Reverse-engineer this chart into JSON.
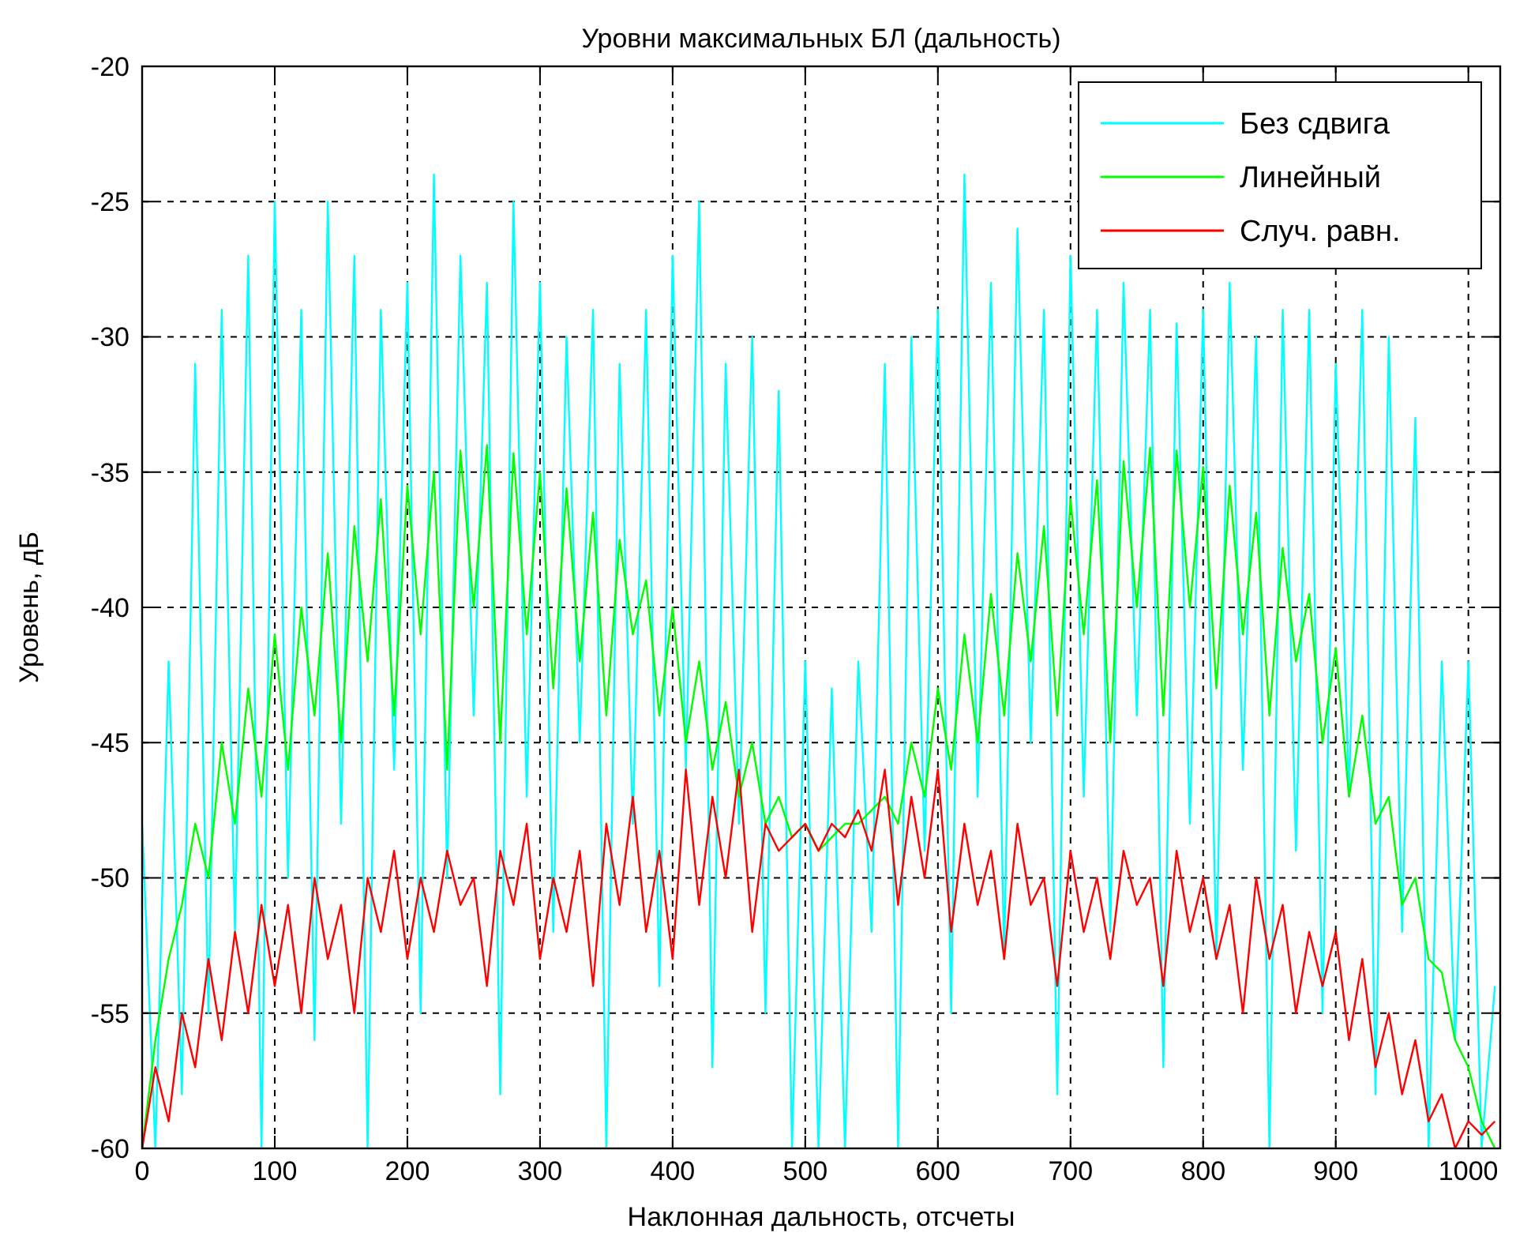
{
  "chart_data": {
    "type": "line",
    "title": "Уровни максимальных БЛ (дальность)",
    "xlabel": "Наклонная дальность, отсчеты",
    "ylabel": "Уровень, дБ",
    "x": [
      0,
      10,
      20,
      30,
      40,
      50,
      60,
      70,
      80,
      90,
      100,
      110,
      120,
      130,
      140,
      150,
      160,
      170,
      180,
      190,
      200,
      210,
      220,
      230,
      240,
      250,
      260,
      270,
      280,
      290,
      300,
      310,
      320,
      330,
      340,
      350,
      360,
      370,
      380,
      390,
      400,
      410,
      420,
      430,
      440,
      450,
      460,
      470,
      480,
      490,
      500,
      510,
      520,
      530,
      540,
      550,
      560,
      570,
      580,
      590,
      600,
      610,
      620,
      630,
      640,
      650,
      660,
      670,
      680,
      690,
      700,
      710,
      720,
      730,
      740,
      750,
      760,
      770,
      780,
      790,
      800,
      810,
      820,
      830,
      840,
      850,
      860,
      870,
      880,
      890,
      900,
      910,
      920,
      930,
      940,
      950,
      960,
      970,
      980,
      990,
      1000,
      1010,
      1020
    ],
    "xlim": [
      0,
      1024
    ],
    "xticks": [
      0,
      100,
      200,
      300,
      400,
      500,
      600,
      700,
      800,
      900,
      1000
    ],
    "ylim": [
      -60,
      -20
    ],
    "yticks": [
      -60,
      -55,
      -50,
      -45,
      -40,
      -35,
      -30,
      -25,
      -20
    ],
    "grid": true,
    "legend": "top right",
    "line_style": "solid",
    "series": [
      {
        "name": "Без сдвига",
        "color": "#00ffff",
        "values": [
          -48,
          -60,
          -42,
          -58,
          -31,
          -55,
          -29,
          -52,
          -27,
          -60,
          -25,
          -50,
          -29,
          -56,
          -25,
          -48,
          -27,
          -60,
          -29,
          -46,
          -28,
          -55,
          -24,
          -50,
          -27,
          -44,
          -28,
          -58,
          -25,
          -47,
          -28,
          -52,
          -30,
          -45,
          -29,
          -60,
          -31,
          -48,
          -29,
          -54,
          -27,
          -46,
          -25,
          -57,
          -31,
          -48,
          -30,
          -55,
          -32,
          -60,
          -42,
          -60,
          -43,
          -60,
          -42,
          -52,
          -31,
          -60,
          -30,
          -49,
          -29,
          -55,
          -24,
          -47,
          -28,
          -53,
          -26,
          -45,
          -29,
          -58,
          -27,
          -47,
          -29,
          -52,
          -28,
          -44,
          -29,
          -57,
          -29.5,
          -48,
          -29,
          -53,
          -28,
          -46,
          -30,
          -60,
          -29,
          -49,
          -29,
          -55,
          -31,
          -47,
          -29,
          -58,
          -30,
          -52,
          -33,
          -60,
          -42,
          -56,
          -42,
          -60,
          -54
        ]
      },
      {
        "name": "Линейный",
        "color": "#00ff00",
        "values": [
          -60,
          -56,
          -53,
          -51,
          -48,
          -50,
          -45,
          -48,
          -43,
          -47,
          -41,
          -46,
          -40,
          -44,
          -38,
          -45,
          -37,
          -42,
          -36,
          -44,
          -35.5,
          -41,
          -35,
          -46,
          -34.2,
          -40,
          -34,
          -45,
          -34.3,
          -41,
          -35,
          -43,
          -35.6,
          -42,
          -36.5,
          -44,
          -37.5,
          -41,
          -39,
          -44,
          -40,
          -45,
          -42,
          -46,
          -43.5,
          -47,
          -45,
          -48,
          -47,
          -48.5,
          -48,
          -49,
          -48.5,
          -48,
          -48,
          -47.5,
          -47,
          -48,
          -45,
          -47,
          -43,
          -46,
          -41,
          -45,
          -39.5,
          -44,
          -38,
          -42,
          -37,
          -44,
          -36,
          -41,
          -35.3,
          -45,
          -34.6,
          -40,
          -34.1,
          -44,
          -34.2,
          -40,
          -34.8,
          -43,
          -35.5,
          -41,
          -36.5,
          -44,
          -37.8,
          -42,
          -39.5,
          -45,
          -41.5,
          -47,
          -44,
          -48,
          -47,
          -51,
          -50,
          -53,
          -53.5,
          -56,
          -57,
          -59,
          -60
        ]
      },
      {
        "name": "Случ. равн.",
        "color": "#ff0000",
        "values": [
          -60,
          -57,
          -59,
          -55,
          -57,
          -53,
          -56,
          -52,
          -55,
          -51,
          -54,
          -51,
          -55,
          -50,
          -53,
          -51,
          -55,
          -50,
          -52,
          -49,
          -53,
          -50,
          -52,
          -49,
          -51,
          -50,
          -54,
          -49,
          -51,
          -48,
          -53,
          -50,
          -52,
          -49,
          -54,
          -48,
          -51,
          -47,
          -52,
          -49,
          -53,
          -46,
          -51,
          -47,
          -50,
          -46,
          -52,
          -48,
          -49,
          -48.5,
          -48,
          -49,
          -48,
          -48.5,
          -47.5,
          -49,
          -46,
          -51,
          -47,
          -50,
          -46,
          -52,
          -48,
          -51,
          -49,
          -53,
          -48,
          -51,
          -50,
          -54,
          -49,
          -52,
          -50,
          -53,
          -49,
          -51,
          -50,
          -54,
          -49,
          -52,
          -50,
          -53,
          -51,
          -55,
          -50,
          -53,
          -51,
          -55,
          -52,
          -54,
          -52,
          -56,
          -53,
          -57,
          -55,
          -58,
          -56,
          -59,
          -58,
          -60,
          -59,
          -59.5,
          -59
        ]
      }
    ]
  }
}
